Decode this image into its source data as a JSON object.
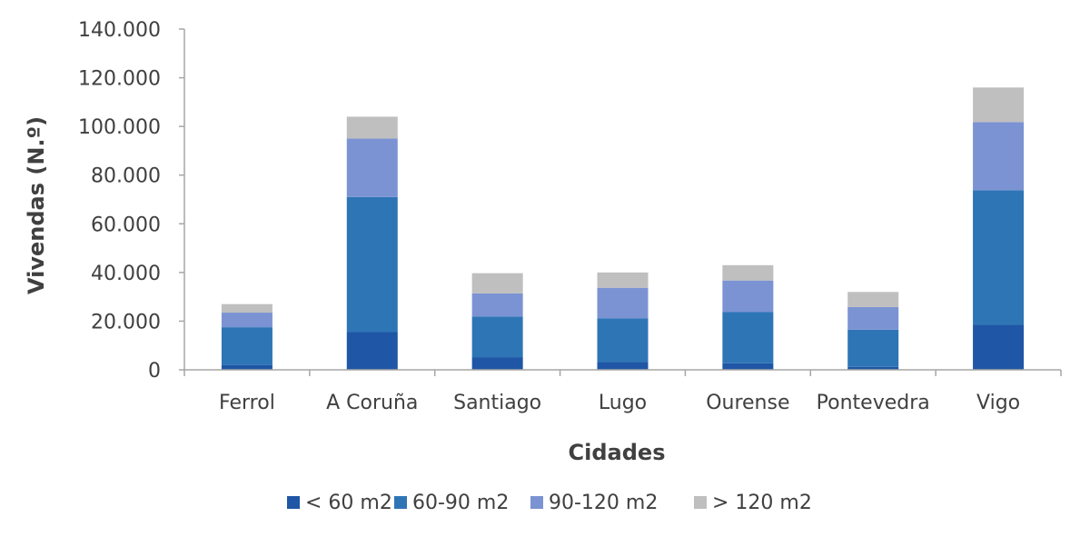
{
  "chart_data": {
    "type": "bar",
    "stacked": true,
    "title": "",
    "xlabel": "Cidades",
    "ylabel": "Vivendas (N.º)",
    "ylim": [
      0,
      140000
    ],
    "yticks": [
      0,
      20000,
      40000,
      60000,
      80000,
      100000,
      120000,
      140000
    ],
    "ytick_labels": [
      "0",
      "20.000",
      "40.000",
      "60.000",
      "80.000",
      "100.000",
      "120.000",
      "140.000"
    ],
    "grid": false,
    "legend_position": "bottom",
    "categories": [
      "Ferrol",
      "A Coruña",
      "Santiago",
      "Lugo",
      "Ourense",
      "Pontevedra",
      "Vigo"
    ],
    "series": [
      {
        "name": "< 60 m2",
        "color": "#1f56a5",
        "values": [
          2000,
          15500,
          5200,
          3200,
          2700,
          1200,
          18500
        ]
      },
      {
        "name": "60-90 m2",
        "color": "#2e75b6",
        "values": [
          15500,
          55500,
          16700,
          18000,
          21000,
          15300,
          55300
        ]
      },
      {
        "name": "90-120 m2",
        "color": "#7b93d2",
        "values": [
          6000,
          24000,
          9500,
          12500,
          13000,
          9300,
          28000
        ]
      },
      {
        "name": "> 120 m2",
        "color": "#bfbfbf",
        "values": [
          3500,
          9000,
          8300,
          6300,
          6300,
          6200,
          14200
        ]
      }
    ]
  }
}
